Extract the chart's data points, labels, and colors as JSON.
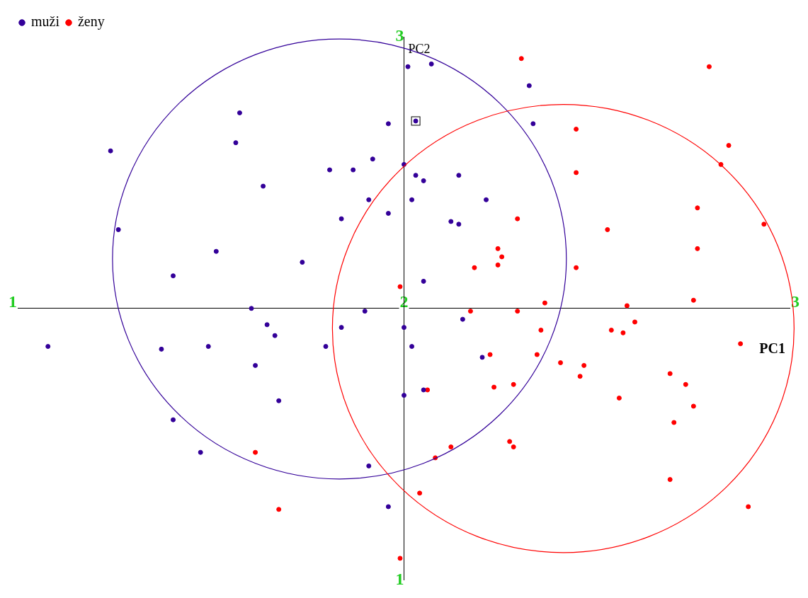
{
  "chart_data": {
    "type": "scatter",
    "xlabel": "PC1",
    "ylabel": "PC2",
    "xlim": [
      1,
      3
    ],
    "ylim": [
      1,
      3
    ],
    "xticks": [
      1,
      2,
      3
    ],
    "yticks": [
      1,
      {
        "value": 2,
        "label": null
      },
      3
    ],
    "grid": false,
    "legend": "top left",
    "marker": "circle",
    "series": [
      {
        "name": "muži",
        "color": "#330099",
        "x": [
          2.01,
          2.07,
          2.32,
          1.96,
          2.03,
          1.58,
          2.33,
          1.25,
          1.57,
          1.81,
          1.87,
          1.92,
          2.0,
          2.03,
          2.05,
          2.14,
          1.64,
          1.91,
          2.02,
          2.21,
          1.84,
          1.96,
          2.12,
          2.14,
          1.27,
          1.52,
          1.74,
          1.41,
          2.05,
          1.61,
          1.9,
          1.65,
          1.67,
          1.84,
          2.15,
          2.0,
          1.09,
          1.38,
          1.5,
          1.8,
          2.02,
          1.62,
          2.2,
          2.0,
          2.05,
          1.68,
          1.41,
          1.48,
          1.91,
          1.96
        ],
        "values": [
          2.89,
          2.9,
          2.82,
          2.68,
          2.69,
          2.72,
          2.68,
          2.58,
          2.61,
          2.51,
          2.51,
          2.55,
          2.53,
          2.49,
          2.47,
          2.49,
          2.45,
          2.4,
          2.4,
          2.4,
          2.33,
          2.35,
          2.32,
          2.31,
          2.29,
          2.21,
          2.17,
          2.12,
          2.1,
          2.0,
          1.99,
          1.94,
          1.9,
          1.93,
          1.96,
          1.93,
          1.86,
          1.85,
          1.86,
          1.86,
          1.86,
          1.79,
          1.82,
          1.68,
          1.7,
          1.66,
          1.59,
          1.47,
          1.42,
          1.27
        ]
      },
      {
        "name": "ženy",
        "color": "#ff0000",
        "x": [
          2.3,
          2.78,
          2.44,
          2.83,
          2.81,
          2.44,
          2.75,
          2.29,
          2.92,
          2.52,
          2.24,
          2.25,
          2.24,
          2.18,
          2.44,
          2.75,
          1.99,
          2.36,
          2.74,
          2.57,
          2.17,
          2.29,
          2.59,
          2.53,
          2.56,
          2.35,
          2.22,
          2.34,
          2.86,
          2.4,
          2.46,
          2.45,
          2.68,
          2.72,
          2.28,
          2.23,
          2.06,
          2.74,
          2.55,
          2.69,
          2.27,
          2.28,
          2.12,
          2.08,
          1.62,
          2.68,
          2.04,
          2.88,
          1.68,
          1.99
        ],
        "values": [
          2.92,
          2.89,
          2.66,
          2.6,
          2.53,
          2.5,
          2.37,
          2.33,
          2.31,
          2.29,
          2.22,
          2.19,
          2.16,
          2.15,
          2.15,
          2.22,
          2.08,
          2.02,
          2.03,
          2.01,
          1.99,
          1.99,
          1.95,
          1.92,
          1.91,
          1.92,
          1.83,
          1.83,
          1.87,
          1.8,
          1.79,
          1.75,
          1.76,
          1.72,
          1.72,
          1.71,
          1.7,
          1.64,
          1.67,
          1.58,
          1.51,
          1.49,
          1.49,
          1.45,
          1.47,
          1.37,
          1.32,
          1.27,
          1.26,
          1.08
        ]
      }
    ]
  }
}
